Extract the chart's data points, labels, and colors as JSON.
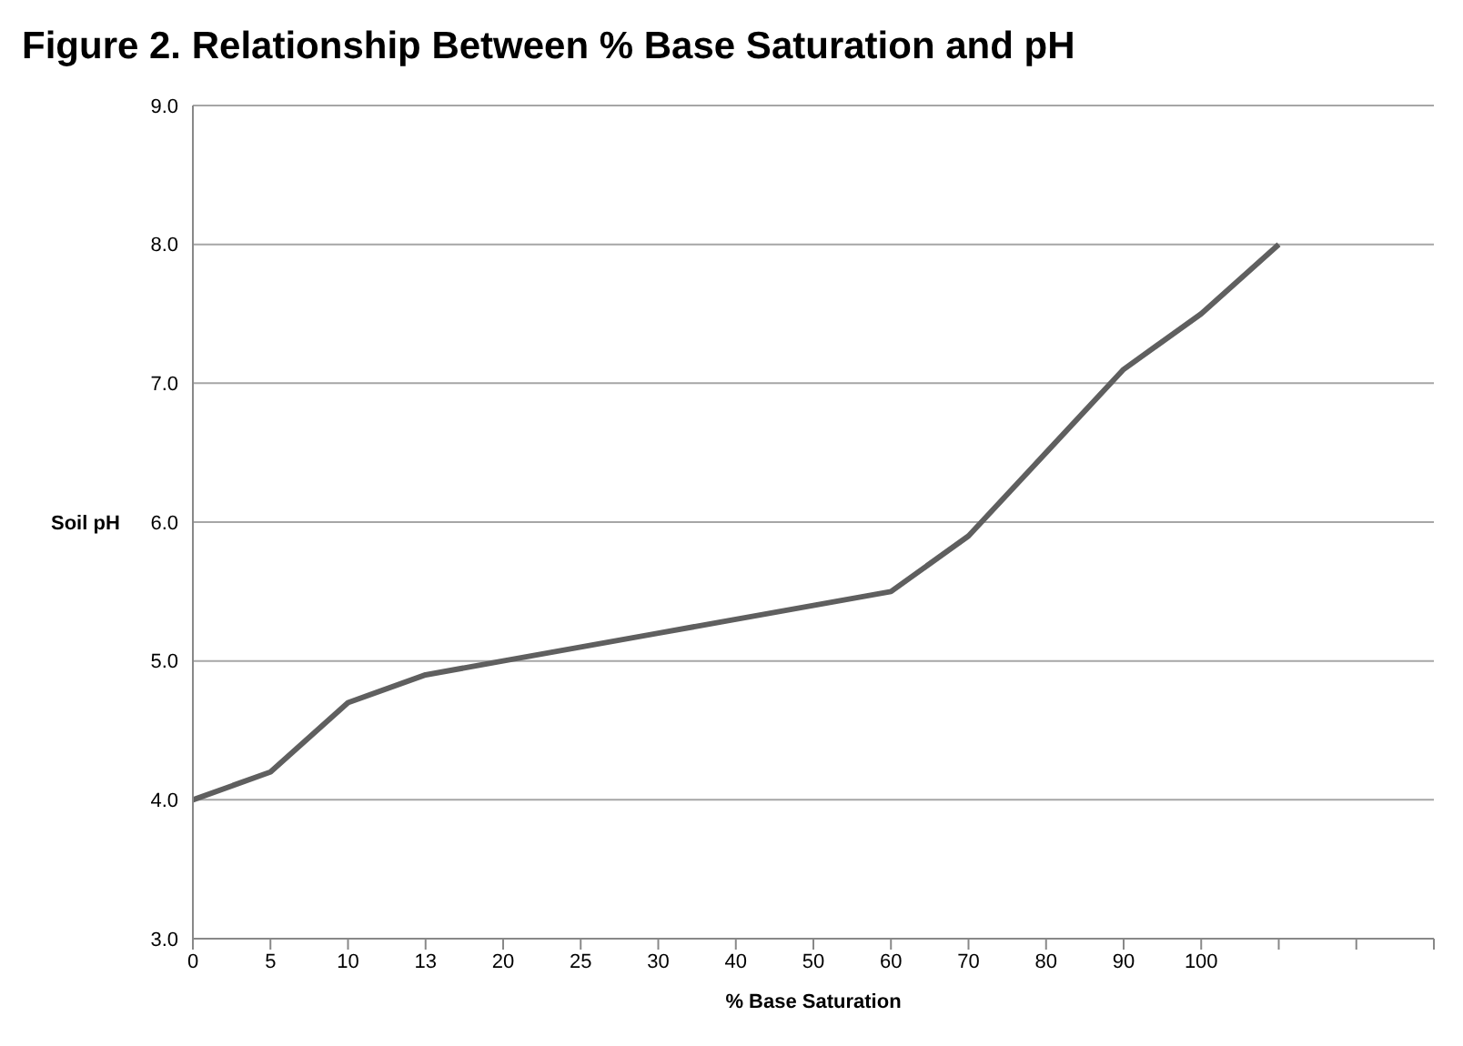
{
  "chart_data": {
    "type": "line",
    "title": "Figure 2. Relationship Between % Base Saturation and pH",
    "xlabel": "% Base Saturation",
    "ylabel": "Soil pH",
    "categories": [
      "0",
      "5",
      "10",
      "13",
      "20",
      "25",
      "30",
      "40",
      "50",
      "60",
      "70",
      "80",
      "90",
      "100",
      null,
      null,
      null
    ],
    "series": [
      {
        "color": "#5f5f5f",
        "values": [
          4.0,
          4.2,
          4.7,
          4.9,
          5.0,
          5.1,
          5.2,
          5.3,
          5.4,
          5.5,
          5.9,
          6.5,
          7.1,
          7.5,
          8.0,
          null,
          null
        ]
      }
    ],
    "ylim": [
      3,
      9
    ],
    "yticks": [
      {
        "value": 3,
        "label": "3.0"
      },
      {
        "value": 4,
        "label": "4.0"
      },
      {
        "value": 5,
        "label": "5.0"
      },
      {
        "value": 6,
        "label": "6.0"
      },
      {
        "value": 7,
        "label": "7.0"
      },
      {
        "value": 8,
        "label": "8.0"
      },
      {
        "value": 9,
        "label": "9.0"
      }
    ],
    "grid": "y",
    "legend": false,
    "marker": "none",
    "line_style": "solid"
  }
}
